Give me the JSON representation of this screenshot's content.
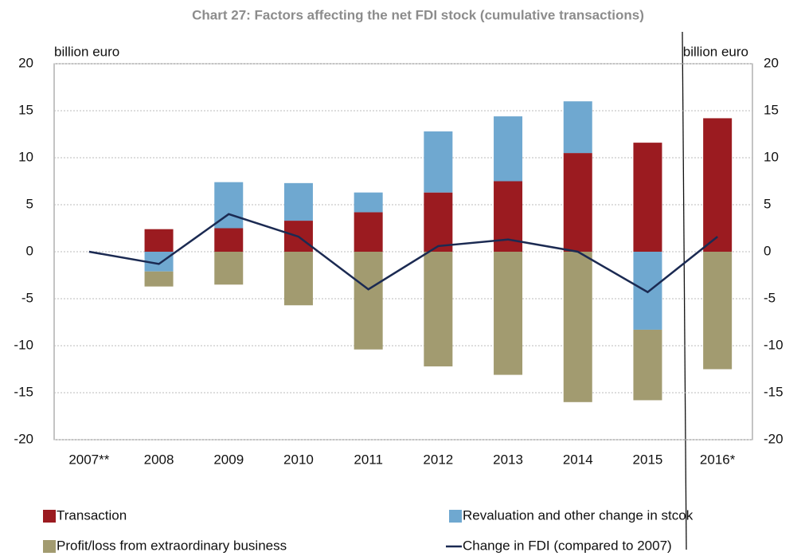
{
  "chart_data": {
    "type": "bar",
    "title": "Chart 27: Factors affecting the net FDI stock (cumulative transactions)",
    "y_label": "billion euro",
    "y2_label": "billion euro",
    "categories": [
      "2007**",
      "2008",
      "2009",
      "2010",
      "2011",
      "2012",
      "2013",
      "2014",
      "2015",
      "2016*"
    ],
    "series": [
      {
        "name": "Transaction",
        "color": "#9b1b20",
        "values": [
          null,
          2.4,
          2.5,
          3.3,
          4.2,
          6.3,
          7.5,
          10.5,
          11.6,
          14.2
        ]
      },
      {
        "name": "Revaluation and other change in stcok",
        "color": "#6fa8d0",
        "values": [
          null,
          -2.1,
          4.9,
          4.0,
          2.1,
          6.5,
          6.9,
          5.5,
          -8.3,
          null
        ]
      },
      {
        "name": "Profit/loss from extraordinary business",
        "color": "#a29b70",
        "values": [
          null,
          -1.6,
          -3.5,
          -5.7,
          -10.4,
          -12.2,
          -13.1,
          -16.0,
          -7.5,
          -12.5
        ]
      },
      {
        "name": "Change in FDI (compared to 2007)",
        "color": "#1b2a52",
        "type": "line",
        "values": [
          0,
          -1.3,
          4.0,
          1.6,
          -4.0,
          0.6,
          1.3,
          0,
          -4.3,
          1.6
        ]
      }
    ],
    "ylim": [
      -20,
      20
    ],
    "yticks": [
      -20,
      -15,
      -10,
      -5,
      0,
      5,
      10,
      15,
      20
    ],
    "grid": true
  }
}
